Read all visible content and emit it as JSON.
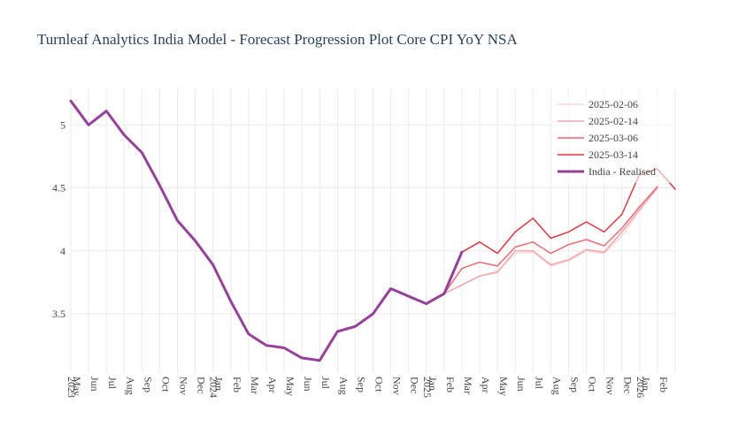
{
  "chart_data": {
    "type": "line",
    "title": "Turnleaf Analytics India Model - Forecast Progression Plot Core CPI YoY NSA",
    "xlabel": "",
    "ylabel": "",
    "ylim": [
      3.03,
      5.29
    ],
    "yticks": [
      3.5,
      4,
      4.5,
      5
    ],
    "ytick_labels": [
      "3.5",
      "4",
      "4.5",
      "5"
    ],
    "x_tick_labels": [
      "2023",
      "May",
      "Jun",
      "Jul",
      "Aug",
      "Sep",
      "Oct",
      "Nov",
      "Dec",
      "2024",
      "Jan",
      "Feb",
      "Mar",
      "Apr",
      "May",
      "Jun",
      "Jul",
      "Aug",
      "Sep",
      "Oct",
      "Nov",
      "Dec",
      "2025",
      "Jan",
      "Feb",
      "Mar",
      "Apr",
      "May",
      "Jun",
      "Jul",
      "Aug",
      "Sep",
      "Oct",
      "Nov",
      "Dec",
      "2026",
      "Jan",
      "Feb"
    ],
    "x_labels": [
      "2023-04",
      "2023-05",
      "2023-06",
      "2023-07",
      "2023-08",
      "2023-09",
      "2023-10",
      "2023-11",
      "2023-12",
      "2024-01",
      "2024-02",
      "2024-03",
      "2024-04",
      "2024-05",
      "2024-06",
      "2024-07",
      "2024-08",
      "2024-09",
      "2024-10",
      "2024-11",
      "2024-12",
      "2025-01",
      "2025-02",
      "2025-03",
      "2025-04",
      "2025-05",
      "2025-06",
      "2025-07",
      "2025-08",
      "2025-09",
      "2025-10",
      "2025-11",
      "2025-12",
      "2026-01",
      "2026-02"
    ],
    "legend_position": "top-right",
    "series": [
      {
        "name": "2025-02-06",
        "color": "#fcd9dc",
        "x": [
          "2025-01",
          "2025-02",
          "2025-03",
          "2025-04",
          "2025-05",
          "2025-06",
          "2025-07",
          "2025-08",
          "2025-09",
          "2025-10",
          "2025-11",
          "2025-12",
          "2026-01"
        ],
        "values": [
          3.66,
          3.73,
          3.8,
          3.84,
          3.98,
          3.99,
          3.88,
          3.92,
          4.0,
          3.98,
          4.12,
          4.32,
          4.5
        ]
      },
      {
        "name": "2025-02-14",
        "color": "#f5a6ac",
        "x": [
          "2025-01",
          "2025-02",
          "2025-03",
          "2025-04",
          "2025-05",
          "2025-06",
          "2025-07",
          "2025-08",
          "2025-09",
          "2025-10",
          "2025-11",
          "2025-12",
          "2026-01"
        ],
        "values": [
          3.66,
          3.73,
          3.8,
          3.83,
          4.0,
          4.0,
          3.89,
          3.93,
          4.01,
          3.99,
          4.15,
          4.33,
          4.5
        ]
      },
      {
        "name": "2025-03-06",
        "color": "#ee6a72",
        "x": [
          "2025-01",
          "2025-02",
          "2025-03",
          "2025-04",
          "2025-05",
          "2025-06",
          "2025-07",
          "2025-08",
          "2025-09",
          "2025-10",
          "2025-11",
          "2025-12",
          "2026-01"
        ],
        "values": [
          3.66,
          3.86,
          3.91,
          3.88,
          4.03,
          4.07,
          3.98,
          4.05,
          4.09,
          4.04,
          4.18,
          4.35,
          4.51
        ]
      },
      {
        "name": "2025-03-14",
        "color": "#e0363f",
        "x": [
          "2025-02",
          "2025-03",
          "2025-04",
          "2025-05",
          "2025-06",
          "2025-07",
          "2025-08",
          "2025-09",
          "2025-10",
          "2025-11",
          "2025-12",
          "2026-01",
          "2026-02"
        ],
        "values": [
          3.99,
          4.07,
          3.98,
          4.15,
          4.26,
          4.1,
          4.15,
          4.23,
          4.15,
          4.29,
          4.61,
          4.65,
          4.49
        ]
      },
      {
        "name": "India - Realised",
        "color": "#96409a",
        "x": [
          "2023-04",
          "2023-05",
          "2023-06",
          "2023-07",
          "2023-08",
          "2023-09",
          "2023-10",
          "2023-11",
          "2023-12",
          "2024-01",
          "2024-02",
          "2024-03",
          "2024-04",
          "2024-05",
          "2024-06",
          "2024-07",
          "2024-08",
          "2024-09",
          "2024-10",
          "2024-11",
          "2024-12",
          "2025-01",
          "2025-02"
        ],
        "values": [
          5.19,
          5.0,
          5.11,
          4.92,
          4.78,
          4.52,
          4.24,
          4.08,
          3.89,
          3.6,
          3.34,
          3.25,
          3.23,
          3.15,
          3.13,
          3.36,
          3.4,
          3.5,
          3.7,
          3.64,
          3.58,
          3.66,
          3.99
        ]
      }
    ]
  }
}
